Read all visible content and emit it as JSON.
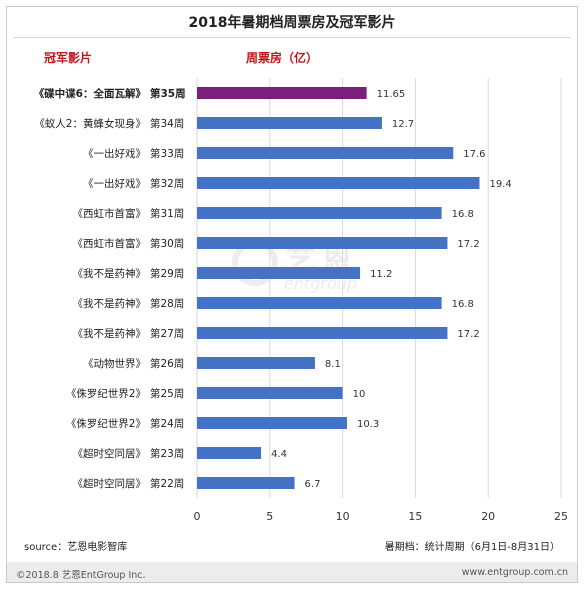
{
  "title": "2018年暑期档周票房及冠军影片",
  "headers": {
    "film": "冠军影片",
    "box_office": "周票房（亿）"
  },
  "source": "source：艺恩电影智库",
  "period_note": "暑期档：统计周期（6月1日-8月31日）",
  "copyright": "©2018.8 艺恩EntGroup Inc.",
  "website": "www.entgroup.com.cn",
  "watermark": {
    "cn": "艺恩",
    "en": "entgroup"
  },
  "colors": {
    "bar": "#4472c4",
    "highlight_bar": "#7b1f7c",
    "header_red": "#c0151b",
    "grid": "#d9d9d9"
  },
  "chart_data": {
    "type": "bar",
    "orientation": "horizontal",
    "title": "2018年暑期档周票房及冠军影片",
    "xlim": [
      0,
      25
    ],
    "x_ticks": [
      "0",
      "5",
      "10",
      "15",
      "20",
      "25"
    ],
    "grid": true,
    "rows": [
      {
        "film": "《碟中谍6：全面瓦解》",
        "week": "第35周",
        "value": 11.65,
        "label": "11.65",
        "highlight": true
      },
      {
        "film": "《蚁人2：黄蜂女现身》",
        "week": "第34周",
        "value": 12.7,
        "label": "12.7",
        "highlight": false
      },
      {
        "film": "《一出好戏》",
        "week": "第33周",
        "value": 17.6,
        "label": "17.6",
        "highlight": false
      },
      {
        "film": "《一出好戏》",
        "week": "第32周",
        "value": 19.4,
        "label": "19.4",
        "highlight": false
      },
      {
        "film": "《西虹市首富》",
        "week": "第31周",
        "value": 16.8,
        "label": "16.8",
        "highlight": false
      },
      {
        "film": "《西虹市首富》",
        "week": "第30周",
        "value": 17.2,
        "label": "17.2",
        "highlight": false
      },
      {
        "film": "《我不是药神》",
        "week": "第29周",
        "value": 11.2,
        "label": "11.2",
        "highlight": false
      },
      {
        "film": "《我不是药神》",
        "week": "第28周",
        "value": 16.8,
        "label": "16.8",
        "highlight": false
      },
      {
        "film": "《我不是药神》",
        "week": "第27周",
        "value": 17.2,
        "label": "17.2",
        "highlight": false
      },
      {
        "film": "《动物世界》",
        "week": "第26周",
        "value": 8.1,
        "label": "8.1",
        "highlight": false
      },
      {
        "film": "《侏罗纪世界2》",
        "week": "第25周",
        "value": 10,
        "label": "10",
        "highlight": false
      },
      {
        "film": "《侏罗纪世界2》",
        "week": "第24周",
        "value": 10.3,
        "label": "10.3",
        "highlight": false
      },
      {
        "film": "《超时空同居》",
        "week": "第23周",
        "value": 4.4,
        "label": "4.4",
        "highlight": false
      },
      {
        "film": "《超时空同居》",
        "week": "第22周",
        "value": 6.7,
        "label": "6.7",
        "highlight": false
      }
    ]
  }
}
